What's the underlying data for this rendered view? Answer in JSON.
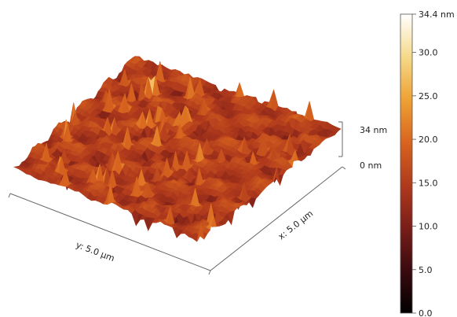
{
  "chart_data": {
    "type": "surface3d",
    "title": "",
    "x_axis_label": "x: 5.0 µm",
    "y_axis_label": "y: 5.0 µm",
    "z_scale_top_label": "34 nm",
    "z_scale_bottom_label": "0 nm",
    "x_range_um": [
      0,
      5.0
    ],
    "y_range_um": [
      0,
      5.0
    ],
    "z_range_nm": [
      0,
      34.4
    ],
    "typical_height_nm": [
      10,
      20
    ],
    "colorbar": {
      "min": 0.0,
      "max": 34.4,
      "colormap": [
        "#000000",
        "#3a0a0e",
        "#7a1e18",
        "#b03a1c",
        "#d8641f",
        "#eea234",
        "#f6d98a",
        "#ffffff"
      ],
      "ticks": [
        {
          "value": 0.0,
          "label": "0.0"
        },
        {
          "value": 5.0,
          "label": "5.0"
        },
        {
          "value": 10.0,
          "label": "10.0"
        },
        {
          "value": 15.0,
          "label": "15.0"
        },
        {
          "value": 20.0,
          "label": "20.0"
        },
        {
          "value": 25.0,
          "label": "25.0"
        },
        {
          "value": 30.0,
          "label": "30.0"
        },
        {
          "value": 34.4,
          "label": "34.4 nm"
        }
      ]
    }
  }
}
